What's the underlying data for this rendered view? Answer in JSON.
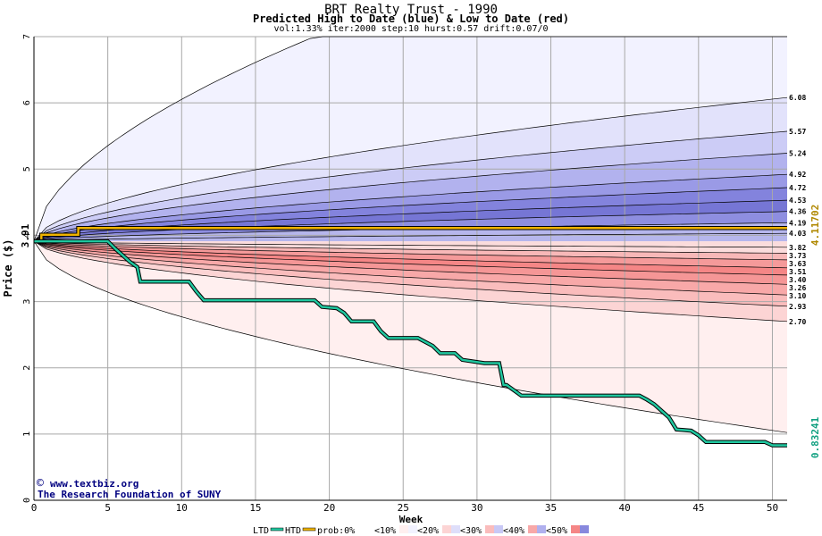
{
  "header": {
    "title": "BRT Realty Trust - 1990",
    "subtitle": "Predicted High to Date (blue) &  Low to Date (red)",
    "params": "vol:1.33% iter:2000 step:10 hurst:0.57 drift:0.07/0"
  },
  "chart_data": {
    "type": "line",
    "xlabel": "Week",
    "ylabel": "Price ($)",
    "xlim": [
      0,
      51
    ],
    "ylim": [
      0,
      7
    ],
    "x_ticks": [
      "0",
      "5",
      "10",
      "15",
      "20",
      "25",
      "30",
      "35",
      "40",
      "45",
      "50"
    ],
    "y_ticks": [
      "0",
      "1",
      "2",
      "3",
      "4",
      "5",
      "6",
      "7"
    ],
    "start_price": "3.91",
    "high_band_levels": [
      {
        "week": 51,
        "value": 6.08,
        "label": "6.08"
      },
      {
        "week": 51,
        "value": 5.57,
        "label": "5.57"
      },
      {
        "week": 51,
        "value": 5.24,
        "label": "5.24"
      },
      {
        "week": 51,
        "value": 4.92,
        "label": "4.92"
      },
      {
        "week": 51,
        "value": 4.72,
        "label": "4.72"
      },
      {
        "week": 51,
        "value": 4.53,
        "label": "4.53"
      },
      {
        "week": 51,
        "value": 4.36,
        "label": "4.36"
      },
      {
        "week": 51,
        "value": 4.19,
        "label": "4.19"
      },
      {
        "week": 51,
        "value": 4.03,
        "label": "4.03"
      }
    ],
    "low_band_levels": [
      {
        "week": 51,
        "value": 3.82,
        "label": "3.82"
      },
      {
        "week": 51,
        "value": 3.73,
        "label": "3.73"
      },
      {
        "week": 51,
        "value": 3.63,
        "label": "3.63"
      },
      {
        "week": 51,
        "value": 3.51,
        "label": "3.51"
      },
      {
        "week": 51,
        "value": 3.4,
        "label": "3.40"
      },
      {
        "week": 51,
        "value": 3.26,
        "label": "3.26"
      },
      {
        "week": 51,
        "value": 3.1,
        "label": "3.10"
      },
      {
        "week": 51,
        "value": 2.93,
        "label": "2.93"
      },
      {
        "week": 51,
        "value": 2.7,
        "label": "2.70"
      }
    ],
    "outer_high_at_19": 7.0,
    "outer_low_at_35": 1.58,
    "right_labels": {
      "high": "4.11702",
      "low": "0.83241"
    },
    "series": [
      {
        "name": "HTD",
        "color": "#f0b400",
        "x": [
          0,
          0.5,
          0.5,
          3,
          3,
          51
        ],
        "y": [
          3.91,
          3.91,
          4.01,
          4.01,
          4.11,
          4.11
        ]
      },
      {
        "name": "LTD",
        "color": "#20c8a0",
        "x": [
          0,
          5,
          5.5,
          6,
          6.5,
          7,
          7.2,
          10.5,
          11,
          11.5,
          19,
          19.5,
          20.5,
          21,
          21.5,
          23,
          23.5,
          24,
          25,
          26,
          27,
          27.5,
          28.5,
          29,
          30.5,
          31.5,
          31.8,
          32,
          32.5,
          33,
          33.5,
          41,
          41.5,
          42,
          42.5,
          43,
          43.5,
          44.5,
          45,
          45.5,
          49.5,
          50,
          51
        ],
        "y": [
          3.91,
          3.91,
          3.8,
          3.7,
          3.6,
          3.52,
          3.3,
          3.3,
          3.15,
          3.02,
          3.02,
          2.92,
          2.9,
          2.83,
          2.7,
          2.7,
          2.55,
          2.45,
          2.45,
          2.45,
          2.33,
          2.22,
          2.22,
          2.12,
          2.07,
          2.07,
          1.74,
          1.74,
          1.66,
          1.58,
          1.58,
          1.58,
          1.52,
          1.45,
          1.35,
          1.25,
          1.07,
          1.05,
          0.98,
          0.88,
          0.88,
          0.83,
          0.83
        ]
      }
    ],
    "band_colors": {
      "high": [
        "#f2f2ff",
        "#e2e2fb",
        "#ccccf6",
        "#b2b2ee",
        "#9a9ae6",
        "#8383dd",
        "#7676d5",
        "#8e8ee0",
        "#b6b6ec"
      ],
      "low": [
        "#ffefef",
        "#fcd4d4",
        "#fabcbc",
        "#f8a8a8",
        "#f59696",
        "#f58686",
        "#f59a9a",
        "#f8b8b8",
        "#fbdcdc"
      ]
    },
    "legend_text": {
      "ltd": "LTD",
      "htd": "HTD",
      "prob0": "prob:0%",
      "p10": "<10%",
      "p20": "<20%",
      "p30": "<30%",
      "p40": "<40%",
      "p50": "<50%"
    },
    "legend_colors": [
      "#ffffff",
      "#f2f2ff",
      "#dedefa",
      "#c8c8f5",
      "#b0b0ee",
      "#8888dd"
    ],
    "legend_colors_red": [
      "#ffffff",
      "#ffefef",
      "#fcd4d4",
      "#fabcbc",
      "#f8a8a8",
      "#f58686"
    ],
    "credits": [
      "www.textbiz.org",
      "The Research Foundation of SUNY"
    ]
  }
}
